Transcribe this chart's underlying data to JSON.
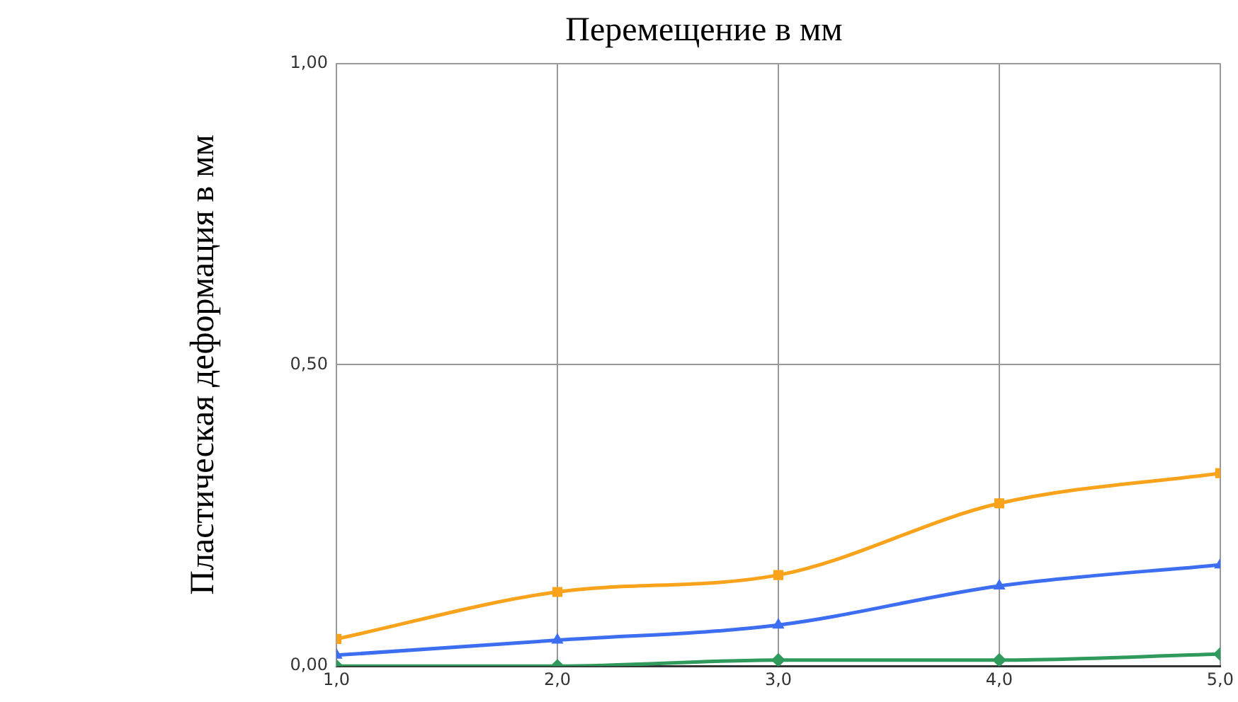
{
  "chart_data": {
    "type": "line",
    "title": "Перемещение в мм",
    "ylabel": "Пластическая деформация в мм",
    "x": [
      1,
      2,
      3,
      4,
      5
    ],
    "series": [
      {
        "color": "#f9a31c",
        "marker": "square",
        "values": [
          0.045,
          0.123,
          0.151,
          0.27,
          0.32
        ]
      },
      {
        "color": "#3d6ef2",
        "marker": "triangle",
        "values": [
          0.018,
          0.043,
          0.068,
          0.133,
          0.168
        ]
      },
      {
        "color": "#2f9a5c",
        "marker": "diamond",
        "values": [
          0,
          0,
          0.01,
          0.01,
          0.02
        ]
      }
    ],
    "xlim": [
      1,
      5
    ],
    "xticks": [
      {
        "value": 1,
        "label": "1,0"
      },
      {
        "value": 2,
        "label": "2,0"
      },
      {
        "value": 3,
        "label": "3,0"
      },
      {
        "value": 4,
        "label": "4,0"
      },
      {
        "value": 5,
        "label": "5,0"
      }
    ],
    "ylim": [
      0,
      1
    ],
    "yticks": [
      {
        "value": 0,
        "label": "0,00"
      },
      {
        "value": 0.5,
        "label": "0,50"
      },
      {
        "value": 1,
        "label": "1,00"
      }
    ],
    "grid": true,
    "legend": false,
    "line_style": "solid"
  }
}
